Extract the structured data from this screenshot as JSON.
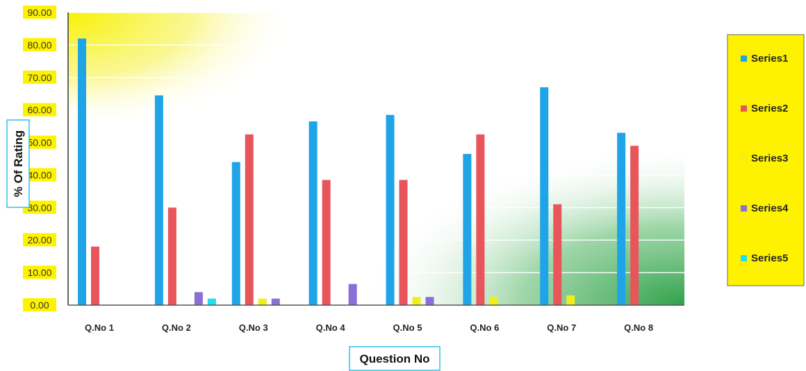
{
  "chart_data": {
    "type": "bar",
    "categories": [
      "Q.No 1",
      "Q.No 2",
      "Q.No 3",
      "Q.No 4",
      "Q.No 5",
      "Q.No 6",
      "Q.No 7",
      "Q.No 8"
    ],
    "series": [
      {
        "name": "Series1",
        "color": "#1fa4e8",
        "values": [
          82.0,
          64.5,
          44.0,
          56.5,
          58.5,
          46.5,
          67.0,
          53.0
        ]
      },
      {
        "name": "Series2",
        "color": "#e8555a",
        "values": [
          18.0,
          30.0,
          52.5,
          38.5,
          38.5,
          52.5,
          31.0,
          49.0
        ]
      },
      {
        "name": "Series3",
        "color": "#f2ee1a",
        "values": [
          0,
          0,
          2.0,
          0,
          2.5,
          2.5,
          3.0,
          0
        ]
      },
      {
        "name": "Series4",
        "color": "#8a6fd6",
        "values": [
          0,
          4.0,
          2.0,
          6.5,
          2.5,
          0,
          0,
          0
        ]
      },
      {
        "name": "Series5",
        "color": "#1fe0ee",
        "values": [
          0,
          2.0,
          0,
          0,
          0,
          0,
          0,
          0
        ]
      }
    ],
    "yticks": [
      "0.00",
      "10.00",
      "20.00",
      "30.00",
      "40.00",
      "50.00",
      "60.00",
      "70.00",
      "80.00",
      "90.00"
    ],
    "xlabel": "Question No",
    "ylabel": "% Of Rating",
    "ylim": [
      0,
      90
    ],
    "grid": true,
    "legend": "right",
    "colors": {
      "legend_bg": "#fff200",
      "plot_corner_top_left": "#f7f200",
      "plot_corner_bottom_right": "#2fa14a",
      "axis_title_border": "#29c3e6"
    }
  }
}
